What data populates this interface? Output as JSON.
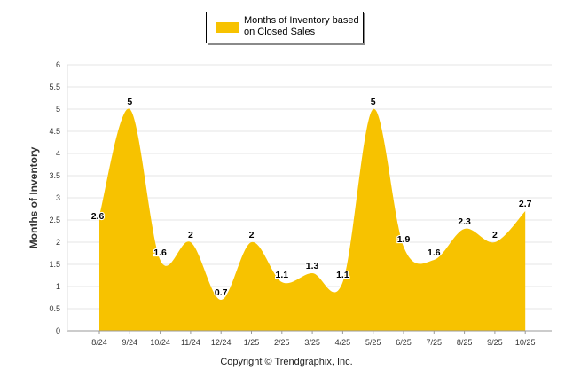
{
  "legend": {
    "label": "Months of Inventory based on Closed Sales"
  },
  "footer": {
    "copyright": "Copyright © Trendgraphix, Inc."
  },
  "colors": {
    "fill": "#F7C200",
    "grid": "#e6e6e6",
    "text": "#333333"
  },
  "chart_data": {
    "type": "area",
    "title": "",
    "xlabel": "",
    "ylabel": "Months of Inventory",
    "categories": [
      "8/24",
      "9/24",
      "10/24",
      "11/24",
      "12/24",
      "1/25",
      "2/25",
      "3/25",
      "4/25",
      "5/25",
      "6/25",
      "7/25",
      "8/25",
      "9/25",
      "10/25"
    ],
    "series": [
      {
        "name": "Months of Inventory based on Closed Sales",
        "values": [
          2.6,
          5,
          1.6,
          2,
          0.7,
          2,
          1.1,
          1.3,
          1.1,
          5,
          1.9,
          1.6,
          2.3,
          2,
          2.7
        ],
        "labels": [
          "2.6",
          "5",
          "1.6",
          "2",
          "0.7",
          "2",
          "1.1",
          "1.3",
          "1.1",
          "5",
          "1.9",
          "1.6",
          "2.3",
          "2",
          "2.7"
        ]
      }
    ],
    "ylim": [
      0,
      6
    ],
    "yticks": [
      "0",
      "0.5",
      "1",
      "1.5",
      "2",
      "2.5",
      "3",
      "3.5",
      "4",
      "4.5",
      "5",
      "5.5",
      "6"
    ],
    "grid": true,
    "legend_position": "top-center"
  }
}
